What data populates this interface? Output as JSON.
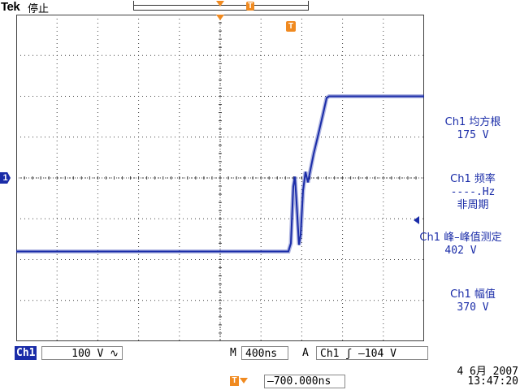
{
  "header": {
    "brand": "Tek",
    "status": "停止",
    "trigger_marker": "T"
  },
  "channel": {
    "ground_marker": "1",
    "badge": "Ch1",
    "scale": "100 V ∿"
  },
  "measurements": [
    {
      "name": "Ch1 均方根",
      "value": "175 V"
    },
    {
      "name": "Ch1 频率",
      "value": "----.Hz",
      "extra": "非周期"
    },
    {
      "name": "Ch1 峰–峰值测定",
      "value": "402 V"
    },
    {
      "name": "Ch1 幅值",
      "value": "370 V"
    }
  ],
  "status_bar": {
    "timebase_letter": "M",
    "timebase": "400ns",
    "trigger_letter": "A",
    "trigger": "Ch1  ʃ  –104 V"
  },
  "datetime": {
    "date": "4 6月  2007",
    "time": "13:47:20"
  },
  "horizontal_offset": {
    "icon": "T",
    "value": "–700.000ns"
  },
  "colors": {
    "trace": "#1a2ca8",
    "trigger_marker": "#f08a20",
    "graticule": "#404040"
  },
  "waveform": {
    "low_level_divisions": -1.8,
    "high_level_divisions": 2.0
  }
}
